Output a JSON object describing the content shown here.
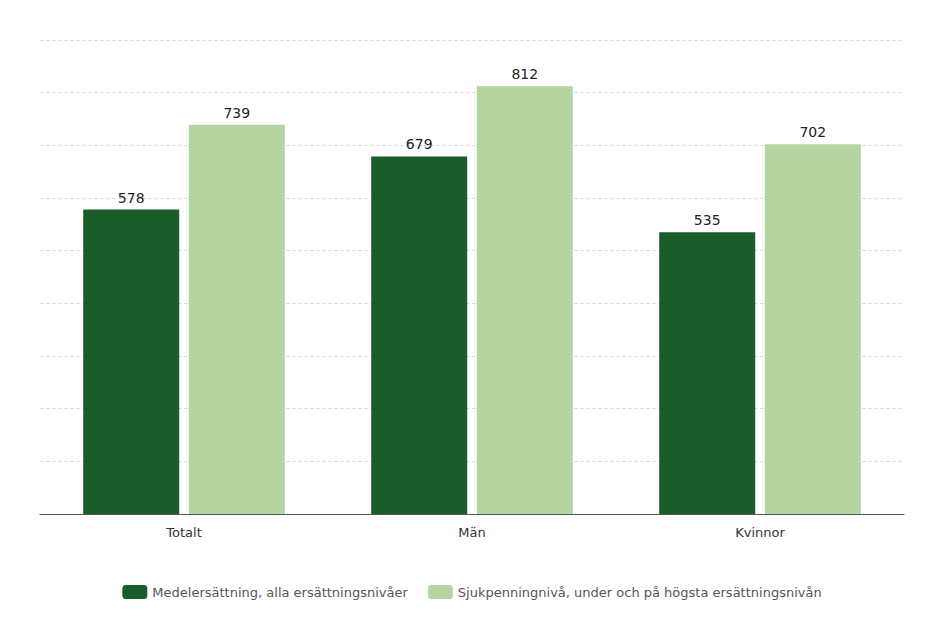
{
  "chart_data": {
    "type": "bar",
    "categories": [
      "Totalt",
      "Män",
      "Kvinnor"
    ],
    "series": [
      {
        "name": "Medelersättning, alla ersättningsnivåer",
        "color": "#1a5c2a",
        "values": [
          578,
          679,
          535
        ]
      },
      {
        "name": "Sjukpenningnivå, under och på högsta ersättningsnivån",
        "color": "#b5d5a0",
        "values": [
          739,
          812,
          702
        ]
      }
    ],
    "ylim": [
      0,
      900
    ],
    "yticks": [
      0,
      100,
      200,
      300,
      400,
      500,
      600,
      700,
      800,
      900
    ],
    "grid": true,
    "legend": "bottom",
    "data_labels": true,
    "tick_labels": "x"
  }
}
